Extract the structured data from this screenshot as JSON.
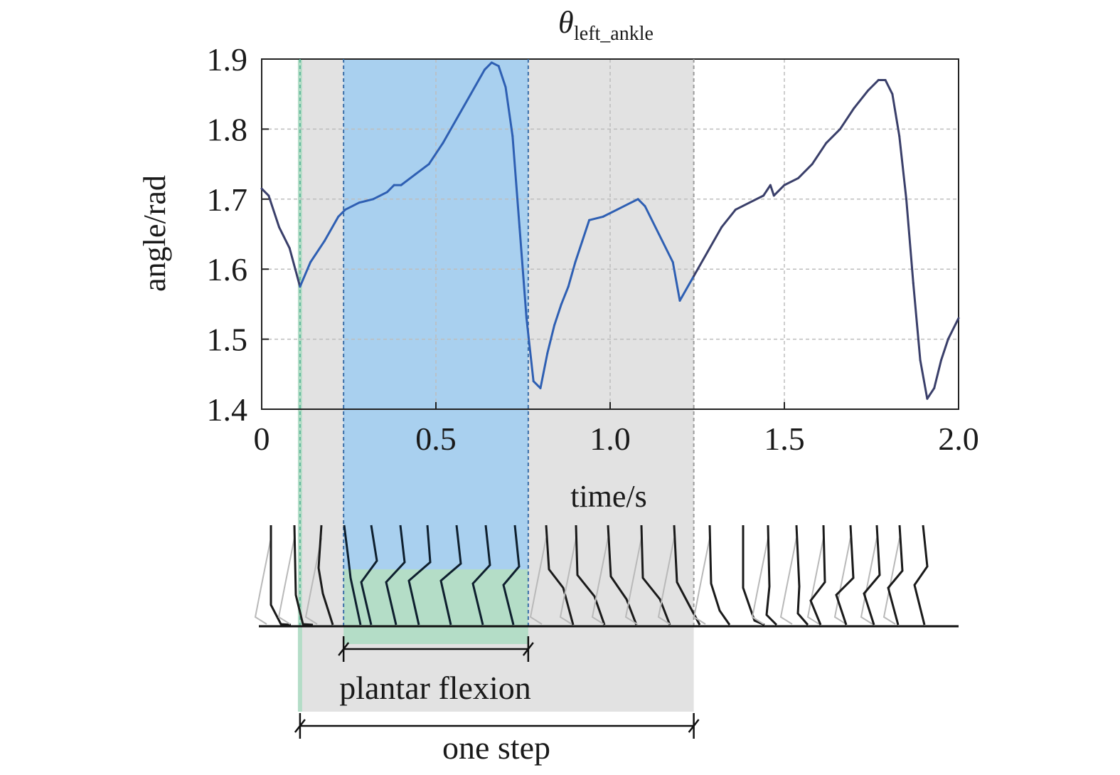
{
  "chart_data": {
    "type": "line",
    "title_symbol": "θ",
    "title_subscript": "left_ankle",
    "xlabel": "time/s",
    "ylabel": "angle/rad",
    "xlim": [
      0,
      2.0
    ],
    "ylim": [
      1.4,
      1.9
    ],
    "x_ticks": [
      "0",
      "0.5",
      "1.0",
      "1.5",
      "2.0"
    ],
    "y_ticks": [
      "1.9",
      "1.8",
      "1.7",
      "1.6",
      "1.5",
      "1.4"
    ],
    "grid": true,
    "series": [
      {
        "x": [
          0.0,
          0.02,
          0.05,
          0.08,
          0.11,
          0.14,
          0.18,
          0.22,
          0.24,
          0.28,
          0.32,
          0.36,
          0.38,
          0.4,
          0.44,
          0.48,
          0.52,
          0.56,
          0.6,
          0.64,
          0.66,
          0.68,
          0.7,
          0.72,
          0.74,
          0.76,
          0.78,
          0.8,
          0.82,
          0.84,
          0.86,
          0.88,
          0.9,
          0.92,
          0.94,
          0.98,
          1.02,
          1.06,
          1.08,
          1.1,
          1.14,
          1.18,
          1.2,
          1.24,
          1.28,
          1.32,
          1.36,
          1.4,
          1.44,
          1.46,
          1.47,
          1.48,
          1.5,
          1.54,
          1.58,
          1.62,
          1.66,
          1.7,
          1.74,
          1.77,
          1.79,
          1.81,
          1.83,
          1.85,
          1.87,
          1.89,
          1.91,
          1.93,
          1.95,
          1.97,
          2.0
        ],
        "values": [
          1.715,
          1.705,
          1.66,
          1.63,
          1.575,
          1.61,
          1.64,
          1.675,
          1.685,
          1.695,
          1.7,
          1.71,
          1.72,
          1.72,
          1.735,
          1.75,
          1.78,
          1.815,
          1.85,
          1.885,
          1.895,
          1.89,
          1.86,
          1.79,
          1.66,
          1.53,
          1.44,
          1.43,
          1.48,
          1.52,
          1.55,
          1.575,
          1.61,
          1.64,
          1.67,
          1.675,
          1.685,
          1.695,
          1.7,
          1.69,
          1.65,
          1.61,
          1.555,
          1.59,
          1.625,
          1.66,
          1.685,
          1.695,
          1.705,
          1.72,
          1.705,
          1.71,
          1.72,
          1.73,
          1.75,
          1.78,
          1.8,
          1.83,
          1.855,
          1.87,
          1.87,
          1.85,
          1.79,
          1.7,
          1.58,
          1.47,
          1.415,
          1.43,
          1.47,
          1.5,
          1.53
        ]
      }
    ],
    "regions": {
      "one_step": [
        0.11,
        1.24
      ],
      "plantar_flexion": [
        0.235,
        0.765
      ]
    },
    "annotations": {
      "plantar_flexion": "plantar flexion",
      "one_step": "one step"
    }
  },
  "colors": {
    "step_region": "#e2e2e2",
    "plantar_region": "#a9d0ef",
    "foot_region": "#b4ddc7",
    "line": "#2f4f9a",
    "line_in_region": "#2e5fb3",
    "grid": "#bdbdbd"
  }
}
